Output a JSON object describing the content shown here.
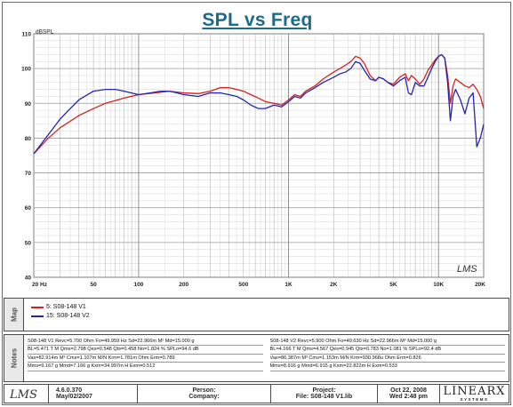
{
  "title": "SPL vs Freq",
  "chart_data": {
    "type": "line",
    "title": "SPL vs Freq",
    "ylabel": "dBSPL",
    "xlabel": "",
    "xscale": "log",
    "xlim": [
      20,
      20000
    ],
    "ylim": [
      40,
      110
    ],
    "yticks": [
      40,
      50,
      60,
      70,
      80,
      90,
      100,
      110
    ],
    "xticks": [
      {
        "v": 20,
        "label": "20 Hz"
      },
      {
        "v": 50,
        "label": "50"
      },
      {
        "v": 100,
        "label": "100"
      },
      {
        "v": 200,
        "label": "200"
      },
      {
        "v": 500,
        "label": "500"
      },
      {
        "v": 1000,
        "label": "1K"
      },
      {
        "v": 2000,
        "label": "2K"
      },
      {
        "v": 5000,
        "label": "5K"
      },
      {
        "v": 10000,
        "label": "10K"
      },
      {
        "v": 20000,
        "label": "20K"
      }
    ],
    "grid": true,
    "series": [
      {
        "name": "5: S08-148 V1",
        "color": "#d42020",
        "x": [
          20,
          25,
          30,
          40,
          50,
          60,
          80,
          100,
          130,
          160,
          200,
          250,
          300,
          350,
          400,
          450,
          500,
          560,
          630,
          700,
          800,
          900,
          1000,
          1100,
          1200,
          1300,
          1500,
          1700,
          2000,
          2200,
          2400,
          2600,
          2800,
          3000,
          3200,
          3500,
          3800,
          4000,
          4300,
          4600,
          5000,
          5500,
          6000,
          6300,
          6600,
          7000,
          7500,
          8000,
          8500,
          9000,
          9500,
          10000,
          10500,
          11000,
          11500,
          12000,
          12500,
          13000,
          14000,
          15000,
          16000,
          17000,
          18000,
          19000,
          20000
        ],
        "y": [
          75.5,
          80,
          83,
          86.5,
          88.5,
          90,
          91.5,
          92.5,
          93,
          93.5,
          93,
          92.8,
          93.5,
          94.5,
          94.5,
          94,
          93.5,
          92.5,
          91.5,
          90.5,
          90,
          89.5,
          91,
          92.5,
          92,
          93.5,
          95,
          97,
          99,
          100,
          101,
          102,
          103.5,
          103,
          101.5,
          98,
          96.5,
          97.5,
          97,
          96,
          95.5,
          97.5,
          98.5,
          96.5,
          98,
          97,
          95.5,
          97,
          99.5,
          101,
          102.5,
          103.5,
          104,
          103,
          98,
          90,
          95,
          97,
          96,
          95,
          94.5,
          95.5,
          94,
          92,
          88.5
        ]
      },
      {
        "name": "15: S08-148 V2",
        "color": "#2424b0",
        "x": [
          20,
          25,
          30,
          35,
          40,
          50,
          60,
          70,
          80,
          100,
          120,
          140,
          160,
          180,
          200,
          250,
          300,
          350,
          400,
          450,
          500,
          560,
          630,
          700,
          800,
          900,
          1000,
          1100,
          1200,
          1300,
          1500,
          1700,
          2000,
          2200,
          2400,
          2600,
          2800,
          3000,
          3200,
          3500,
          3800,
          4000,
          4300,
          4600,
          5000,
          5500,
          6000,
          6300,
          6600,
          7000,
          7500,
          8000,
          8500,
          9000,
          9500,
          10000,
          10500,
          11000,
          11500,
          12000,
          12500,
          13000,
          14000,
          15000,
          16000,
          17000,
          18000,
          19000,
          20000
        ],
        "y": [
          75.5,
          81,
          85.5,
          88.5,
          91,
          93.5,
          94,
          94,
          93.5,
          92.5,
          93,
          93.5,
          93.5,
          93,
          92.5,
          92,
          93,
          93,
          92.5,
          92,
          91,
          89.5,
          88.5,
          88.5,
          89.5,
          89,
          90.5,
          92,
          91.5,
          93,
          94.5,
          96,
          97.5,
          98.5,
          99,
          100,
          102,
          101.5,
          99.5,
          97,
          96.5,
          97.5,
          97,
          96,
          95,
          96.5,
          97.5,
          93,
          92.5,
          96,
          95,
          95,
          97.5,
          100,
          102,
          103.5,
          104,
          103,
          96,
          85,
          92,
          94,
          91,
          87,
          91.5,
          93,
          77.5,
          80,
          84
        ]
      }
    ]
  },
  "map": {
    "tab_label": "Map",
    "items": [
      {
        "label": "5: S08-148 V1",
        "color": "#d42020"
      },
      {
        "label": "15: S08-148 V2",
        "color": "#2424b0"
      }
    ]
  },
  "notes": {
    "tab_label": "Notes",
    "left": [
      "S08-148 V1 Revc=5.700 Ohm   Fo=49.959 Hz   Sd=22.966m M² Md=15.000 g",
      "BL=5.471 T M   Qms=2.798   Qes=0.548   Qts=0.458   No=1.824 %   SPLo=94.6 dB",
      "Vas=82.914m M³  Cms=1.107m M/N   Krm=1.781m Ohm   Erm=0.789",
      "Mms=9.167 g   Mmd=7.166 g   Kxm=34.997m H   Exm=0.512"
    ],
    "right": [
      "S08-148 V2 Revc=5.900 Ohm   Fo=49.630 Hz   Sd=22.966m M² Md=15.000 g",
      "BL=4.166 T M   Qms=4.567   Qes=0.945   Qts=0.783   No=1.081 %   SPLo=92.4 dB",
      "Vas=86.387m M³  Cms=1.153m M/N   Krm=930.968u Ohm   Erm=0.826",
      "Mms=8.916 g   Mmd=6.915 g   Kxm=22.822m H   Exm=0.533"
    ]
  },
  "watermark": "LMS",
  "footer": {
    "logo": "LMS",
    "version": "4.6.0.370",
    "build_date": "May/02/2007",
    "person_label": "Person:",
    "company_label": "Company:",
    "project_label": "Project:",
    "file_label": "File: S08-148 V1.lib",
    "date": "Oct 22, 2008",
    "time": "Wed  2:48 pm",
    "brand": "LINEARX",
    "brand_sub": "SYSTEMS"
  }
}
